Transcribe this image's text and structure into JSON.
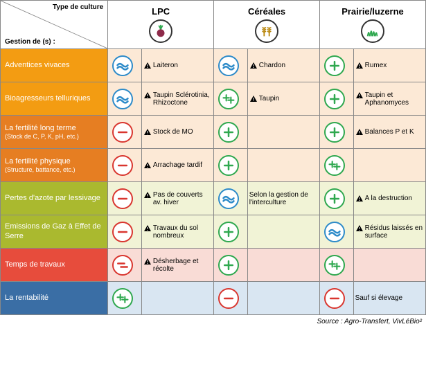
{
  "header": {
    "diag_top": "Type de culture",
    "diag_bot": "Gestion de (s) :",
    "columns": [
      {
        "label": "LPC",
        "icon": "beet"
      },
      {
        "label": "Céréales",
        "icon": "wheat"
      },
      {
        "label": "Prairie/luzerne",
        "icon": "grass"
      }
    ]
  },
  "col_widths": {
    "label": 134,
    "rating": 42,
    "note": 90
  },
  "categories": [
    {
      "groups": [
        {
          "label": "Adventices vivaces",
          "bg": "#f39c12"
        },
        {
          "label": "Bioagresseurs telluriques",
          "bg": "#f39c12"
        },
        {
          "label": "La fertilité long terme",
          "sub": "(Stock de C, P, K, pH, etc.)",
          "bg": "#e67e22"
        },
        {
          "label": "La fertilité physique",
          "sub": "(Structure, battance, etc.)",
          "bg": "#e67e22"
        }
      ],
      "band": "#fce9d6"
    },
    {
      "groups": [
        {
          "label": "Pertes d'azote par lessivage",
          "bg": "#aab92f"
        },
        {
          "label": "Emissions de Gaz à Effet de Serre",
          "bg": "#aab92f"
        }
      ],
      "band": "#f1f3d6"
    },
    {
      "groups": [
        {
          "label": "Temps de travaux",
          "bg": "#e74c3c"
        }
      ],
      "band": "#f9dcd6"
    },
    {
      "groups": [
        {
          "label": "La rentabilité",
          "bg": "#3a6ea5"
        }
      ],
      "band": "#d9e6f2"
    }
  ],
  "ratings": {
    "wave": {
      "kind": "wave",
      "color": "#2d8bc9"
    },
    "plus": {
      "kind": "plus",
      "color": "#2fa84f"
    },
    "plus2": {
      "kind": "plus2",
      "color": "#2fa84f"
    },
    "minus": {
      "kind": "minus",
      "color": "#d9362f"
    },
    "minus2": {
      "kind": "minus2",
      "color": "#d9362f"
    }
  },
  "rows": [
    {
      "cells": [
        {
          "r": "wave",
          "warn": true,
          "note": "Laiteron"
        },
        {
          "r": "wave",
          "warn": true,
          "note": "Chardon"
        },
        {
          "r": "plus",
          "warn": true,
          "note": "Rumex"
        }
      ]
    },
    {
      "cells": [
        {
          "r": "wave",
          "warn": true,
          "note": "Taupin Sclérotinia, Rhizoctone"
        },
        {
          "r": "plus2",
          "warn": true,
          "note": "Taupin"
        },
        {
          "r": "plus",
          "warn": true,
          "note": "Taupin et Aphanomyces"
        }
      ]
    },
    {
      "cells": [
        {
          "r": "minus",
          "warn": true,
          "note": "Stock de MO"
        },
        {
          "r": "plus",
          "warn": false,
          "note": ""
        },
        {
          "r": "plus",
          "warn": true,
          "note": "Balances P et K"
        }
      ]
    },
    {
      "cells": [
        {
          "r": "minus",
          "warn": true,
          "note": "Arrachage tardif"
        },
        {
          "r": "plus",
          "warn": false,
          "note": ""
        },
        {
          "r": "plus2",
          "warn": false,
          "note": ""
        }
      ]
    },
    {
      "cells": [
        {
          "r": "minus",
          "warn": true,
          "note": "Pas de couverts av. hiver"
        },
        {
          "r": "wave",
          "warn": false,
          "note": "Selon la gestion de l'interculture"
        },
        {
          "r": "plus",
          "warn": true,
          "note": "A la destruction"
        }
      ]
    },
    {
      "cells": [
        {
          "r": "minus",
          "warn": true,
          "note": "Travaux du sol nombreux"
        },
        {
          "r": "plus",
          "warn": false,
          "note": ""
        },
        {
          "r": "wave",
          "warn": true,
          "note": "Résidus laissés en surface"
        }
      ]
    },
    {
      "cells": [
        {
          "r": "minus2",
          "warn": true,
          "note": "Désherbage et récolte"
        },
        {
          "r": "plus",
          "warn": false,
          "note": ""
        },
        {
          "r": "plus2",
          "warn": false,
          "note": ""
        }
      ]
    },
    {
      "cells": [
        {
          "r": "plus2",
          "warn": false,
          "note": ""
        },
        {
          "r": "minus",
          "warn": false,
          "note": ""
        },
        {
          "r": "minus",
          "warn": false,
          "note": "Sauf si élevage"
        }
      ]
    }
  ],
  "source": "Source : Agro-Transfert, VivLéBio²"
}
